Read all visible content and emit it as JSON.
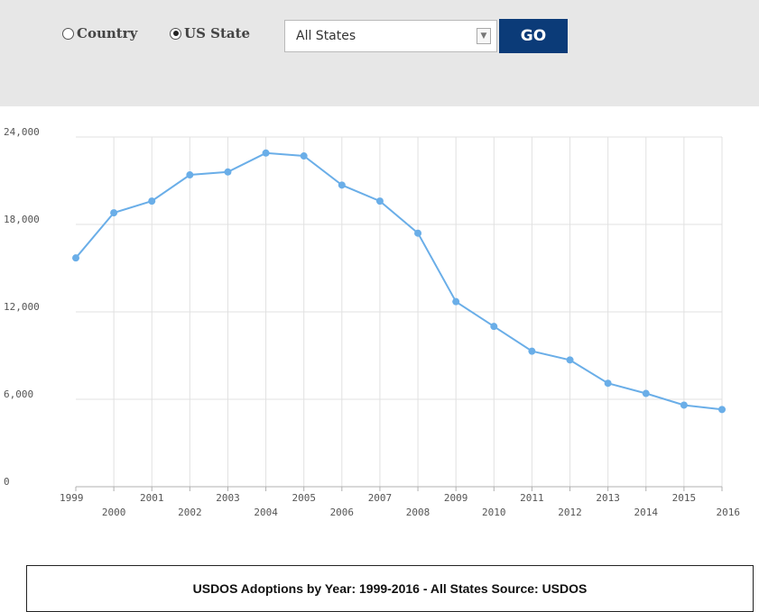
{
  "filters": {
    "country_label": "Country",
    "state_label": "US State",
    "selected": "state",
    "select_value": "All States",
    "go_label": "GO",
    "go_color": "#0b3b78"
  },
  "chart_data": {
    "type": "line",
    "x": [
      1999,
      2000,
      2001,
      2002,
      2003,
      2004,
      2005,
      2006,
      2007,
      2008,
      2009,
      2010,
      2011,
      2012,
      2013,
      2014,
      2015,
      2016
    ],
    "series": [
      {
        "values": [
          15700,
          18800,
          19600,
          21400,
          21600,
          22900,
          22700,
          20700,
          19600,
          17400,
          12700,
          11000,
          9300,
          8700,
          7100,
          6400,
          5600,
          5300
        ],
        "color": "#6aaee8"
      }
    ],
    "ylim": [
      0,
      24000
    ],
    "yticks": [
      "0",
      "6,000",
      "12,000",
      "18,000",
      "24,000"
    ],
    "ytick_values": [
      0,
      6000,
      12000,
      18000,
      24000
    ],
    "grid": true,
    "legend": "none"
  },
  "caption": "USDOS Adoptions by Year: 1999-2016 - All States Source: USDOS"
}
